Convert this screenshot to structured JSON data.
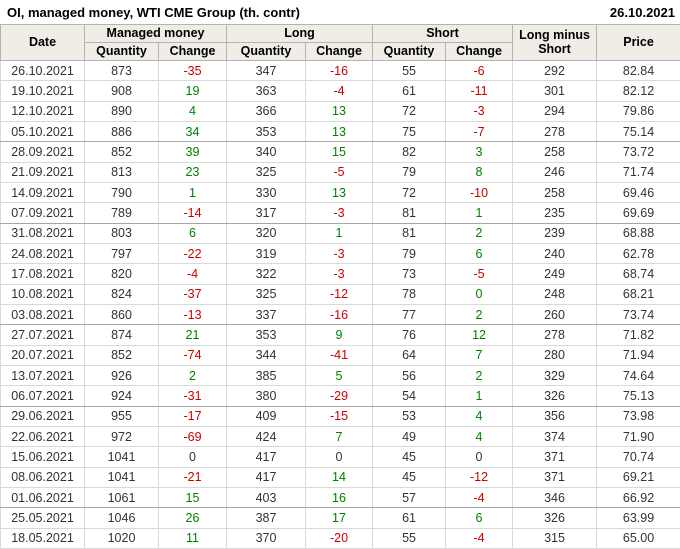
{
  "title": "OI, managed money, WTI CME Group (th. contr)",
  "as_of_date": "26.10.2021",
  "header": {
    "date": "Date",
    "managed_money": "Managed money",
    "long": "Long",
    "short": "Short",
    "quantity": "Quantity",
    "change": "Change",
    "long_minus_short": "Long minus Short",
    "price": "Price"
  },
  "colors": {
    "positive_change": "#008000",
    "negative_change": "#cc0000",
    "text": "#333333",
    "header_background": "#f0ede6",
    "grid_line": "#d9d9d9",
    "month_separator_line": "#a6a6a6"
  },
  "chart_data": {
    "type": "table",
    "title": "OI, managed money, WTI CME Group (th. contr)",
    "as_of_date": "26.10.2021",
    "columns": [
      "Date",
      "Managed money Quantity",
      "Managed money Change",
      "Long Quantity",
      "Long Change",
      "Short Quantity",
      "Short Change",
      "Long minus Short",
      "Price"
    ],
    "rows": [
      {
        "cells": [
          "26.10.2021",
          "873",
          "-35",
          "347",
          "-16",
          "55",
          "-6",
          "292",
          "82.84"
        ],
        "cls": [
          "",
          "",
          "neg",
          "",
          "neg",
          "",
          "neg",
          "",
          ""
        ],
        "month_end": false
      },
      {
        "cells": [
          "19.10.2021",
          "908",
          "19",
          "363",
          "-4",
          "61",
          "-11",
          "301",
          "82.12"
        ],
        "cls": [
          "",
          "",
          "pos",
          "",
          "neg",
          "",
          "neg",
          "",
          ""
        ],
        "month_end": false
      },
      {
        "cells": [
          "12.10.2021",
          "890",
          "4",
          "366",
          "13",
          "72",
          "-3",
          "294",
          "79.86"
        ],
        "cls": [
          "",
          "",
          "pos",
          "",
          "pos",
          "",
          "neg",
          "",
          ""
        ],
        "month_end": false
      },
      {
        "cells": [
          "05.10.2021",
          "886",
          "34",
          "353",
          "13",
          "75",
          "-7",
          "278",
          "75.14"
        ],
        "cls": [
          "",
          "",
          "pos",
          "",
          "pos",
          "",
          "neg",
          "",
          ""
        ],
        "month_end": true
      },
      {
        "cells": [
          "28.09.2021",
          "852",
          "39",
          "340",
          "15",
          "82",
          "3",
          "258",
          "73.72"
        ],
        "cls": [
          "",
          "",
          "pos",
          "",
          "pos",
          "",
          "pos",
          "",
          ""
        ],
        "month_end": false
      },
      {
        "cells": [
          "21.09.2021",
          "813",
          "23",
          "325",
          "-5",
          "79",
          "8",
          "246",
          "71.74"
        ],
        "cls": [
          "",
          "",
          "pos",
          "",
          "neg",
          "",
          "pos",
          "",
          ""
        ],
        "month_end": false
      },
      {
        "cells": [
          "14.09.2021",
          "790",
          "1",
          "330",
          "13",
          "72",
          "-10",
          "258",
          "69.46"
        ],
        "cls": [
          "",
          "",
          "pos",
          "",
          "pos",
          "",
          "neg",
          "",
          ""
        ],
        "month_end": false
      },
      {
        "cells": [
          "07.09.2021",
          "789",
          "-14",
          "317",
          "-3",
          "81",
          "1",
          "235",
          "69.69"
        ],
        "cls": [
          "",
          "",
          "neg",
          "",
          "neg",
          "",
          "pos",
          "",
          ""
        ],
        "month_end": true
      },
      {
        "cells": [
          "31.08.2021",
          "803",
          "6",
          "320",
          "1",
          "81",
          "2",
          "239",
          "68.88"
        ],
        "cls": [
          "",
          "",
          "pos",
          "",
          "pos",
          "",
          "pos",
          "",
          ""
        ],
        "month_end": false
      },
      {
        "cells": [
          "24.08.2021",
          "797",
          "-22",
          "319",
          "-3",
          "79",
          "6",
          "240",
          "62.78"
        ],
        "cls": [
          "",
          "",
          "neg",
          "",
          "neg",
          "",
          "pos",
          "",
          ""
        ],
        "month_end": false
      },
      {
        "cells": [
          "17.08.2021",
          "820",
          "-4",
          "322",
          "-3",
          "73",
          "-5",
          "249",
          "68.74"
        ],
        "cls": [
          "",
          "",
          "neg",
          "",
          "neg",
          "",
          "neg",
          "",
          ""
        ],
        "month_end": false
      },
      {
        "cells": [
          "10.08.2021",
          "824",
          "-37",
          "325",
          "-12",
          "78",
          "0",
          "248",
          "68.21"
        ],
        "cls": [
          "",
          "",
          "neg",
          "",
          "neg",
          "",
          "pos",
          "",
          ""
        ],
        "month_end": false
      },
      {
        "cells": [
          "03.08.2021",
          "860",
          "-13",
          "337",
          "-16",
          "77",
          "2",
          "260",
          "73.74"
        ],
        "cls": [
          "",
          "",
          "neg",
          "",
          "neg",
          "",
          "pos",
          "",
          ""
        ],
        "month_end": true
      },
      {
        "cells": [
          "27.07.2021",
          "874",
          "21",
          "353",
          "9",
          "76",
          "12",
          "278",
          "71.82"
        ],
        "cls": [
          "",
          "",
          "pos",
          "",
          "pos",
          "",
          "pos",
          "",
          ""
        ],
        "month_end": false
      },
      {
        "cells": [
          "20.07.2021",
          "852",
          "-74",
          "344",
          "-41",
          "64",
          "7",
          "280",
          "71.94"
        ],
        "cls": [
          "",
          "",
          "neg",
          "",
          "neg",
          "",
          "pos",
          "",
          ""
        ],
        "month_end": false
      },
      {
        "cells": [
          "13.07.2021",
          "926",
          "2",
          "385",
          "5",
          "56",
          "2",
          "329",
          "74.64"
        ],
        "cls": [
          "",
          "",
          "pos",
          "",
          "pos",
          "",
          "pos",
          "",
          ""
        ],
        "month_end": false
      },
      {
        "cells": [
          "06.07.2021",
          "924",
          "-31",
          "380",
          "-29",
          "54",
          "1",
          "326",
          "75.13"
        ],
        "cls": [
          "",
          "",
          "neg",
          "",
          "neg",
          "",
          "pos",
          "",
          ""
        ],
        "month_end": true
      },
      {
        "cells": [
          "29.06.2021",
          "955",
          "-17",
          "409",
          "-15",
          "53",
          "4",
          "356",
          "73.98"
        ],
        "cls": [
          "",
          "",
          "neg",
          "",
          "neg",
          "",
          "pos",
          "",
          ""
        ],
        "month_end": false
      },
      {
        "cells": [
          "22.06.2021",
          "972",
          "-69",
          "424",
          "7",
          "49",
          "4",
          "374",
          "71.90"
        ],
        "cls": [
          "",
          "",
          "neg",
          "",
          "pos",
          "",
          "pos",
          "",
          ""
        ],
        "month_end": false
      },
      {
        "cells": [
          "15.06.2021",
          "1041",
          "0",
          "417",
          "0",
          "45",
          "0",
          "371",
          "70.74"
        ],
        "cls": [
          "",
          "",
          "",
          "",
          "",
          "",
          "",
          "",
          ""
        ],
        "month_end": false
      },
      {
        "cells": [
          "08.06.2021",
          "1041",
          "-21",
          "417",
          "14",
          "45",
          "-12",
          "371",
          "69.21"
        ],
        "cls": [
          "",
          "",
          "neg",
          "",
          "pos",
          "",
          "neg",
          "",
          ""
        ],
        "month_end": false
      },
      {
        "cells": [
          "01.06.2021",
          "1061",
          "15",
          "403",
          "16",
          "57",
          "-4",
          "346",
          "66.92"
        ],
        "cls": [
          "",
          "",
          "pos",
          "",
          "pos",
          "",
          "neg",
          "",
          ""
        ],
        "month_end": true
      },
      {
        "cells": [
          "25.05.2021",
          "1046",
          "26",
          "387",
          "17",
          "61",
          "6",
          "326",
          "63.99"
        ],
        "cls": [
          "",
          "",
          "pos",
          "",
          "pos",
          "",
          "pos",
          "",
          ""
        ],
        "month_end": false
      },
      {
        "cells": [
          "18.05.2021",
          "1020",
          "11",
          "370",
          "-20",
          "55",
          "-4",
          "315",
          "65.00"
        ],
        "cls": [
          "",
          "",
          "pos",
          "",
          "neg",
          "",
          "neg",
          "",
          ""
        ],
        "month_end": false
      }
    ]
  }
}
